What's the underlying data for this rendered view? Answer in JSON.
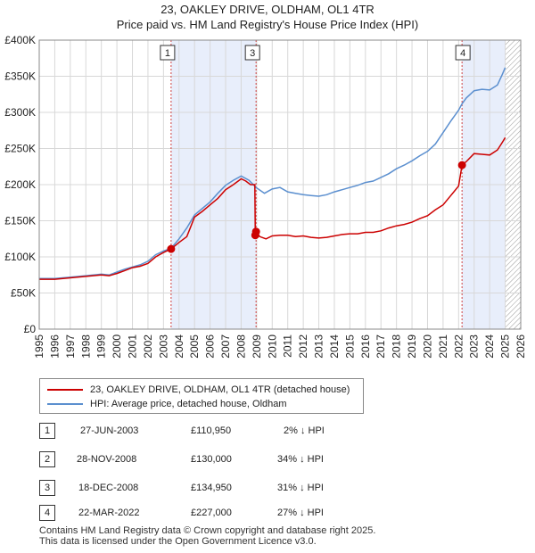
{
  "chart_data": {
    "type": "line",
    "title": "23, OAKLEY DRIVE, OLDHAM, OL1 4TR",
    "subtitle": "Price paid vs. HM Land Registry's House Price Index (HPI)",
    "xlim": [
      1995,
      2026
    ],
    "ylim": [
      0,
      400000
    ],
    "yticks": [
      0,
      50000,
      100000,
      150000,
      200000,
      250000,
      300000,
      350000,
      400000
    ],
    "ytick_labels": [
      "£0",
      "£50K",
      "£100K",
      "£150K",
      "£200K",
      "£250K",
      "£300K",
      "£350K",
      "£400K"
    ],
    "xticks": [
      1995,
      1996,
      1997,
      1998,
      1999,
      2000,
      2001,
      2002,
      2003,
      2004,
      2005,
      2006,
      2007,
      2008,
      2009,
      2010,
      2011,
      2012,
      2013,
      2014,
      2015,
      2016,
      2017,
      2018,
      2019,
      2020,
      2021,
      2022,
      2023,
      2024,
      2025,
      2026
    ],
    "shaded_regions": [
      [
        2003.49,
        2008.96
      ],
      [
        2022.22,
        2025.0
      ]
    ],
    "future_hatch_start": 2025.0,
    "series": [
      {
        "name": "23, OAKLEY DRIVE, OLDHAM, OL1 4TR (detached house)",
        "color": "#cc0000",
        "points": [
          [
            1995.0,
            69000
          ],
          [
            1996.0,
            69000
          ],
          [
            1997.0,
            71000
          ],
          [
            1998.0,
            73000
          ],
          [
            1999.0,
            75000
          ],
          [
            1999.5,
            74000
          ],
          [
            2000.0,
            77000
          ],
          [
            2000.5,
            81000
          ],
          [
            2001.0,
            85000
          ],
          [
            2001.5,
            87000
          ],
          [
            2002.0,
            91000
          ],
          [
            2002.5,
            100000
          ],
          [
            2003.0,
            106000
          ],
          [
            2003.49,
            110950
          ],
          [
            2004.0,
            120000
          ],
          [
            2004.5,
            128000
          ],
          [
            2005.0,
            155000
          ],
          [
            2005.5,
            163000
          ],
          [
            2006.0,
            172000
          ],
          [
            2006.5,
            181000
          ],
          [
            2007.0,
            193000
          ],
          [
            2007.5,
            200000
          ],
          [
            2008.0,
            208000
          ],
          [
            2008.3,
            205000
          ],
          [
            2008.6,
            200000
          ],
          [
            2008.88,
            200000
          ],
          [
            2008.91,
            130000
          ],
          [
            2008.96,
            134950
          ],
          [
            2009.2,
            128000
          ],
          [
            2009.6,
            125000
          ],
          [
            2010.0,
            129000
          ],
          [
            2010.5,
            130000
          ],
          [
            2011.0,
            130000
          ],
          [
            2011.5,
            128000
          ],
          [
            2012.0,
            129000
          ],
          [
            2012.5,
            127000
          ],
          [
            2013.0,
            126000
          ],
          [
            2013.5,
            127000
          ],
          [
            2014.0,
            129000
          ],
          [
            2014.5,
            131000
          ],
          [
            2015.0,
            132000
          ],
          [
            2015.5,
            132000
          ],
          [
            2016.0,
            134000
          ],
          [
            2016.5,
            134000
          ],
          [
            2017.0,
            136000
          ],
          [
            2017.5,
            140000
          ],
          [
            2018.0,
            143000
          ],
          [
            2018.5,
            145000
          ],
          [
            2019.0,
            148000
          ],
          [
            2019.5,
            153000
          ],
          [
            2020.0,
            157000
          ],
          [
            2020.5,
            165000
          ],
          [
            2021.0,
            172000
          ],
          [
            2021.5,
            185000
          ],
          [
            2022.0,
            198000
          ],
          [
            2022.22,
            227000
          ],
          [
            2022.5,
            232000
          ],
          [
            2023.0,
            243000
          ],
          [
            2023.5,
            242000
          ],
          [
            2024.0,
            241000
          ],
          [
            2024.5,
            248000
          ],
          [
            2024.8,
            258000
          ],
          [
            2025.0,
            265000
          ]
        ]
      },
      {
        "name": "HPI: Average price, detached house, Oldham",
        "color": "#5b8fcf",
        "points": [
          [
            1995.0,
            70000
          ],
          [
            1996.0,
            70000
          ],
          [
            1997.0,
            72000
          ],
          [
            1998.0,
            74000
          ],
          [
            1999.0,
            76000
          ],
          [
            1999.5,
            75000
          ],
          [
            2000.0,
            79000
          ],
          [
            2000.5,
            83000
          ],
          [
            2001.0,
            86000
          ],
          [
            2001.5,
            89000
          ],
          [
            2002.0,
            94000
          ],
          [
            2002.5,
            103000
          ],
          [
            2003.0,
            108000
          ],
          [
            2003.49,
            112000
          ],
          [
            2004.0,
            125000
          ],
          [
            2004.5,
            140000
          ],
          [
            2005.0,
            158000
          ],
          [
            2005.5,
            167000
          ],
          [
            2006.0,
            176000
          ],
          [
            2006.5,
            188000
          ],
          [
            2007.0,
            199000
          ],
          [
            2007.5,
            206000
          ],
          [
            2008.0,
            212000
          ],
          [
            2008.5,
            206000
          ],
          [
            2008.96,
            196000
          ],
          [
            2009.5,
            188000
          ],
          [
            2010.0,
            194000
          ],
          [
            2010.5,
            196000
          ],
          [
            2011.0,
            190000
          ],
          [
            2011.5,
            188000
          ],
          [
            2012.0,
            186000
          ],
          [
            2012.5,
            185000
          ],
          [
            2013.0,
            184000
          ],
          [
            2013.5,
            186000
          ],
          [
            2014.0,
            190000
          ],
          [
            2014.5,
            193000
          ],
          [
            2015.0,
            196000
          ],
          [
            2015.5,
            199000
          ],
          [
            2016.0,
            203000
          ],
          [
            2016.5,
            205000
          ],
          [
            2017.0,
            210000
          ],
          [
            2017.5,
            215000
          ],
          [
            2018.0,
            222000
          ],
          [
            2018.5,
            227000
          ],
          [
            2019.0,
            233000
          ],
          [
            2019.5,
            240000
          ],
          [
            2020.0,
            246000
          ],
          [
            2020.5,
            256000
          ],
          [
            2021.0,
            272000
          ],
          [
            2021.5,
            288000
          ],
          [
            2022.0,
            303000
          ],
          [
            2022.22,
            312000
          ],
          [
            2022.5,
            320000
          ],
          [
            2023.0,
            330000
          ],
          [
            2023.5,
            332000
          ],
          [
            2024.0,
            331000
          ],
          [
            2024.5,
            338000
          ],
          [
            2024.8,
            352000
          ],
          [
            2025.0,
            362000
          ]
        ]
      }
    ],
    "markers": [
      {
        "label": "1",
        "x": 2003.49,
        "y": 110950
      },
      {
        "label": "2",
        "x": 2008.91,
        "y": 130000
      },
      {
        "label": "3",
        "x": 2008.96,
        "y": 134950
      },
      {
        "label": "4",
        "x": 2022.22,
        "y": 227000
      }
    ],
    "marker_boxes": [
      {
        "label": "1",
        "x": 2003.49
      },
      {
        "label": "3",
        "x": 2008.96
      },
      {
        "label": "4",
        "x": 2022.22
      }
    ]
  },
  "legend": {
    "red_label": "23, OAKLEY DRIVE, OLDHAM, OL1 4TR (detached house)",
    "blue_label": "HPI: Average price, detached house, Oldham"
  },
  "transactions": [
    {
      "num": "1",
      "date": "27-JUN-2003",
      "price": "£110,950",
      "hpi": "2% ↓ HPI"
    },
    {
      "num": "2",
      "date": "28-NOV-2008",
      "price": "£130,000",
      "hpi": "34% ↓ HPI"
    },
    {
      "num": "3",
      "date": "18-DEC-2008",
      "price": "£134,950",
      "hpi": "31% ↓ HPI"
    },
    {
      "num": "4",
      "date": "22-MAR-2022",
      "price": "£227,000",
      "hpi": "27% ↓ HPI"
    }
  ],
  "footer": {
    "line1": "Contains HM Land Registry data © Crown copyright and database right 2025.",
    "line2": "This data is licensed under the Open Government Licence v3.0."
  }
}
